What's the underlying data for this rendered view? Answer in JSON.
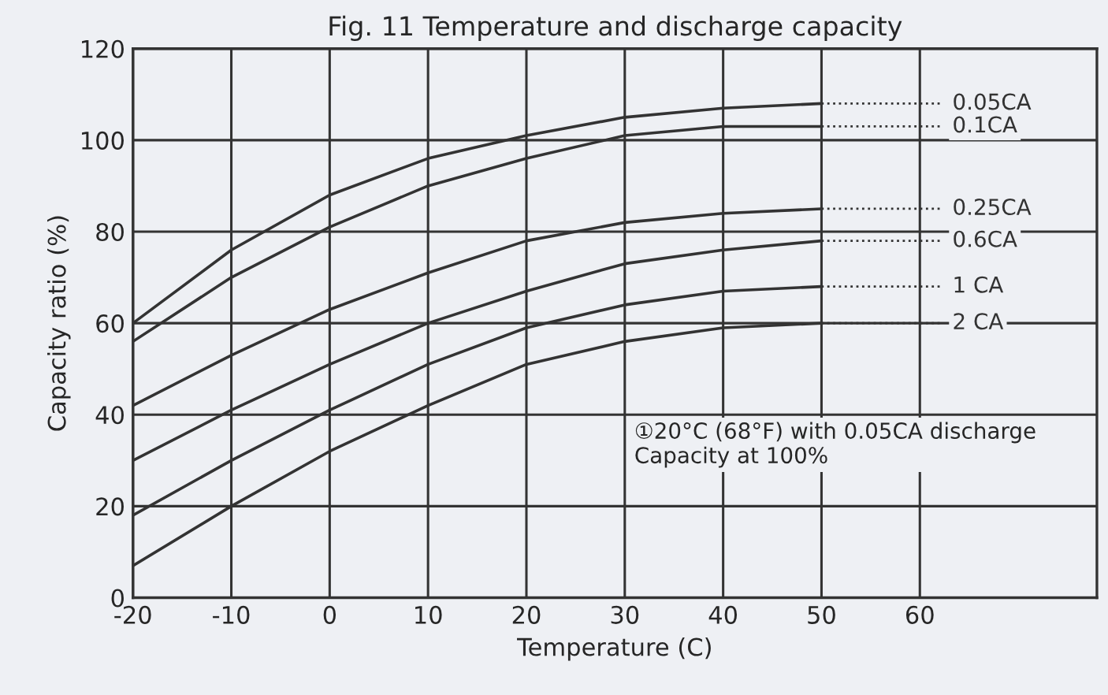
{
  "chart_data": {
    "type": "line",
    "title": "Fig. 11 Temperature and discharge capacity",
    "xlabel": "Temperature (C)",
    "ylabel": "Capacity ratio (%)",
    "x": [
      -20,
      -10,
      0,
      10,
      20,
      30,
      40,
      50
    ],
    "series": [
      {
        "name": "0.05CA",
        "color": "#333333",
        "values": [
          60,
          76,
          88,
          96,
          101,
          105,
          107,
          108
        ]
      },
      {
        "name": "0.1CA",
        "color": "#333333",
        "values": [
          56,
          70,
          81,
          90,
          96,
          101,
          103,
          103
        ]
      },
      {
        "name": "0.25CA",
        "color": "#333333",
        "values": [
          42,
          53,
          63,
          71,
          78,
          82,
          84,
          85
        ]
      },
      {
        "name": "0.6CA",
        "color": "#333333",
        "values": [
          30,
          41,
          51,
          60,
          67,
          73,
          76,
          78
        ]
      },
      {
        "name": "1 CA",
        "color": "#333333",
        "values": [
          18,
          30,
          41,
          51,
          59,
          64,
          67,
          68
        ]
      },
      {
        "name": "2 CA",
        "color": "#333333",
        "values": [
          7,
          20,
          32,
          42,
          51,
          56,
          59,
          60
        ]
      }
    ],
    "xlim": [
      -20,
      78
    ],
    "ylim": [
      0,
      120
    ],
    "xticks": [
      -20,
      -10,
      0,
      10,
      20,
      30,
      40,
      50,
      60
    ],
    "yticks": [
      0,
      20,
      40,
      60,
      80,
      100,
      120
    ],
    "grid": true,
    "legend": false,
    "marker": "none",
    "line_style": "solid",
    "annotations": [
      "①20°C (68°F) with 0.05CA discharge\nCapacity at 100%"
    ]
  }
}
